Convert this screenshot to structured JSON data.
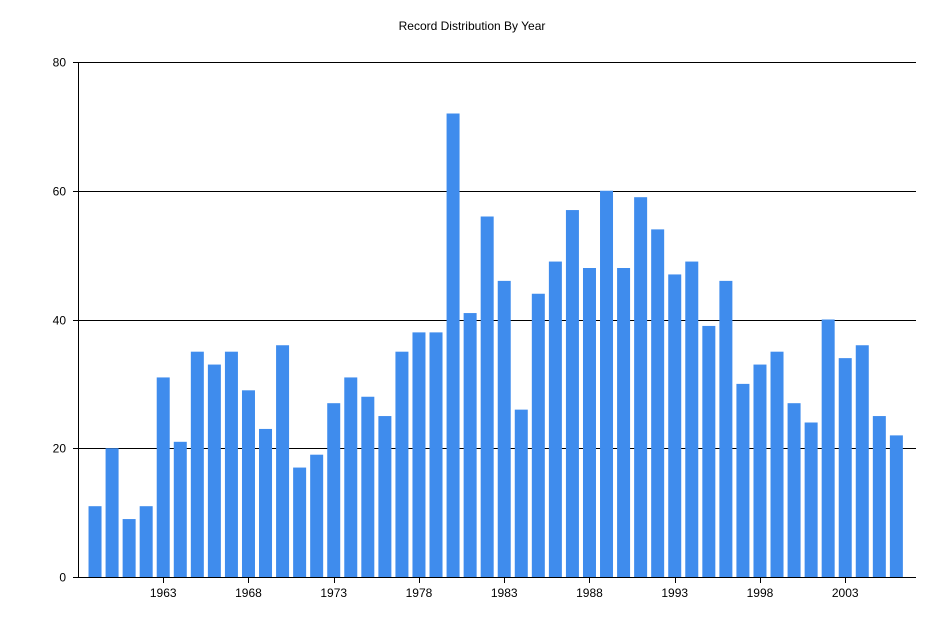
{
  "chart_data": {
    "type": "bar",
    "title": "Record Distribution By Year",
    "xlabel": "",
    "ylabel": "",
    "x": [
      1959,
      1960,
      1961,
      1962,
      1963,
      1964,
      1965,
      1966,
      1967,
      1968,
      1969,
      1970,
      1971,
      1972,
      1973,
      1974,
      1975,
      1976,
      1977,
      1978,
      1979,
      1980,
      1981,
      1982,
      1983,
      1984,
      1985,
      1986,
      1987,
      1988,
      1989,
      1990,
      1991,
      1992,
      1993,
      1994,
      1995,
      1996,
      1997,
      1998,
      1999,
      2000,
      2001,
      2002,
      2003,
      2004,
      2005,
      2006
    ],
    "values": [
      11,
      20,
      9,
      11,
      31,
      21,
      35,
      33,
      35,
      29,
      23,
      36,
      17,
      19,
      27,
      31,
      28,
      25,
      35,
      38,
      38,
      72,
      41,
      56,
      46,
      26,
      44,
      49,
      57,
      48,
      60,
      48,
      59,
      54,
      47,
      49,
      39,
      46,
      30,
      33,
      35,
      27,
      24,
      40,
      34,
      36,
      25,
      22
    ],
    "ylim": [
      0,
      80
    ],
    "yticks": [
      0,
      20,
      40,
      60,
      80
    ],
    "xtick_labels": [
      "1963",
      "1968",
      "1973",
      "1978",
      "1983",
      "1988",
      "1993",
      "1998",
      "2003"
    ],
    "grid": "horizontal",
    "bar_color": "#3f8ced",
    "axis_color": "#000000",
    "grid_color": "#000000"
  }
}
